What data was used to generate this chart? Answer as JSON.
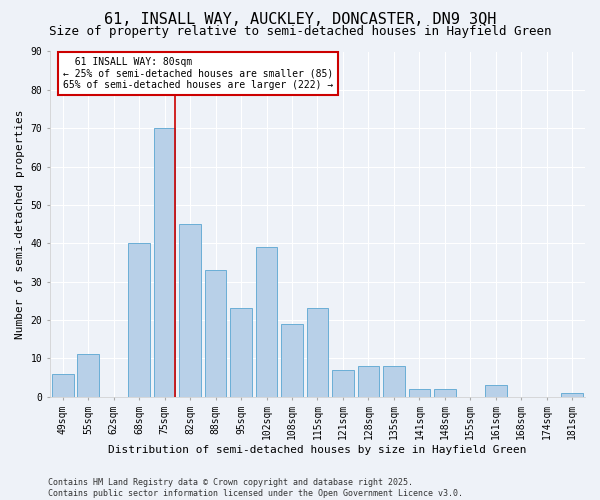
{
  "title": "61, INSALL WAY, AUCKLEY, DONCASTER, DN9 3QH",
  "subtitle": "Size of property relative to semi-detached houses in Hayfield Green",
  "xlabel": "Distribution of semi-detached houses by size in Hayfield Green",
  "ylabel": "Number of semi-detached properties",
  "footer_line1": "Contains HM Land Registry data © Crown copyright and database right 2025.",
  "footer_line2": "Contains public sector information licensed under the Open Government Licence v3.0.",
  "categories": [
    "49sqm",
    "55sqm",
    "62sqm",
    "68sqm",
    "75sqm",
    "82sqm",
    "88sqm",
    "95sqm",
    "102sqm",
    "108sqm",
    "115sqm",
    "121sqm",
    "128sqm",
    "135sqm",
    "141sqm",
    "148sqm",
    "155sqm",
    "161sqm",
    "168sqm",
    "174sqm",
    "181sqm"
  ],
  "values": [
    6,
    11,
    0,
    40,
    70,
    45,
    33,
    23,
    39,
    19,
    23,
    7,
    8,
    8,
    2,
    2,
    0,
    3,
    0,
    0,
    1
  ],
  "bar_color": "#b8d0e8",
  "bar_edge_color": "#6aaed6",
  "annotation_box_color": "#ffffff",
  "annotation_box_edge": "#cc0000",
  "vline_color": "#cc0000",
  "property_label": "61 INSALL WAY: 80sqm",
  "smaller_pct": 25,
  "smaller_count": 85,
  "larger_pct": 65,
  "larger_count": 222,
  "ylim": [
    0,
    90
  ],
  "yticks": [
    0,
    10,
    20,
    30,
    40,
    50,
    60,
    70,
    80,
    90
  ],
  "bg_color": "#eef2f8",
  "grid_color": "#ffffff",
  "title_fontsize": 11,
  "subtitle_fontsize": 9,
  "axis_label_fontsize": 8,
  "tick_fontsize": 7,
  "annotation_fontsize": 7,
  "footer_fontsize": 6
}
